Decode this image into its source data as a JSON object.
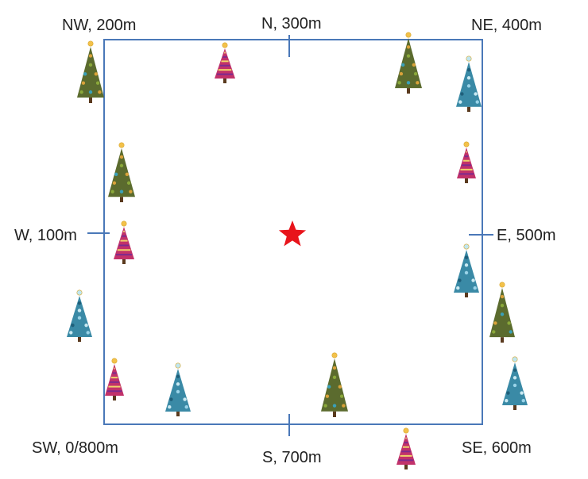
{
  "labels": {
    "nw": "NW, 200m",
    "n": "N, 300m",
    "ne": "NE, 400m",
    "w": "W, 100m",
    "e": "E, 500m",
    "sw": "SW, 0/800m",
    "s": "S, 700m",
    "se": "SE, 600m"
  },
  "colors": {
    "border": "#4a78b8",
    "star": "#e8141b",
    "tree_green": "#5b6b2e",
    "tree_blue": "#3a8aa6",
    "tree_pink": "#c2326a",
    "trunk": "#5a3a1e",
    "topper": "#f3c14a"
  },
  "trees": [
    {
      "name": "tree-nw",
      "kind": "green"
    },
    {
      "name": "tree-n-left",
      "kind": "pink"
    },
    {
      "name": "tree-n-right",
      "kind": "green"
    },
    {
      "name": "tree-ne",
      "kind": "blue"
    },
    {
      "name": "tree-w-upper",
      "kind": "green"
    },
    {
      "name": "tree-w",
      "kind": "pink"
    },
    {
      "name": "tree-w-lower",
      "kind": "blue"
    },
    {
      "name": "tree-e-upper",
      "kind": "pink"
    },
    {
      "name": "tree-e",
      "kind": "blue"
    },
    {
      "name": "tree-e-lower",
      "kind": "green"
    },
    {
      "name": "tree-se-right",
      "kind": "blue"
    },
    {
      "name": "tree-sw",
      "kind": "pink"
    },
    {
      "name": "tree-s-left",
      "kind": "blue"
    },
    {
      "name": "tree-s-right",
      "kind": "green"
    },
    {
      "name": "tree-se-bottom",
      "kind": "pink"
    }
  ]
}
